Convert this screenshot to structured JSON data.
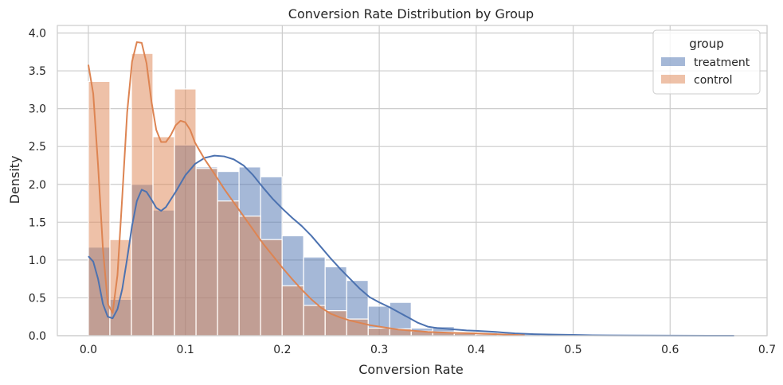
{
  "chart_data": {
    "type": "histogram",
    "title": "Conversion Rate Distribution by Group",
    "xlabel": "Conversion Rate",
    "ylabel": "Density",
    "xlim": [
      -0.032,
      0.7
    ],
    "ylim": [
      0,
      4.1
    ],
    "xticks": [
      {
        "value": 0.0,
        "label": "0.0"
      },
      {
        "value": 0.1,
        "label": "0.1"
      },
      {
        "value": 0.2,
        "label": "0.2"
      },
      {
        "value": 0.3,
        "label": "0.3"
      },
      {
        "value": 0.4,
        "label": "0.4"
      },
      {
        "value": 0.5,
        "label": "0.5"
      },
      {
        "value": 0.6,
        "label": "0.6"
      },
      {
        "value": 0.7,
        "label": "0.7"
      }
    ],
    "yticks": [
      {
        "value": 0.0,
        "label": "0.0"
      },
      {
        "value": 0.5,
        "label": "0.5"
      },
      {
        "value": 1.0,
        "label": "1.0"
      },
      {
        "value": 1.5,
        "label": "1.5"
      },
      {
        "value": 2.0,
        "label": "2.0"
      },
      {
        "value": 2.5,
        "label": "2.5"
      },
      {
        "value": 3.0,
        "label": "3.0"
      },
      {
        "value": 3.5,
        "label": "3.5"
      },
      {
        "value": 4.0,
        "label": "4.0"
      }
    ],
    "grid": true,
    "legend": {
      "title": "group",
      "placement": "top-right"
    },
    "bin_edges": [
      0.0,
      0.0222,
      0.0444,
      0.0666,
      0.0888,
      0.111,
      0.1332,
      0.1554,
      0.1776,
      0.1998,
      0.222,
      0.2442,
      0.2664,
      0.2886,
      0.3108,
      0.333,
      0.3552,
      0.3774,
      0.3996,
      0.4218,
      0.444,
      0.4662,
      0.4884,
      0.5106,
      0.5328,
      0.555,
      0.5772,
      0.5994,
      0.6216,
      0.6438,
      0.666
    ],
    "series": [
      {
        "name": "treatment",
        "color": "#4c72b0",
        "density": [
          1.17,
          0.48,
          2.0,
          1.66,
          2.52,
          2.23,
          2.17,
          2.23,
          2.1,
          1.32,
          1.04,
          0.91,
          0.73,
          0.39,
          0.44,
          0.1,
          0.12,
          0.05,
          0.04,
          0.03,
          0.02,
          0.01,
          0.01,
          0.01,
          0.005,
          0.005,
          0.005,
          0.005,
          0.005,
          0.005
        ],
        "kde": [
          [
            0.0,
            1.05
          ],
          [
            0.005,
            0.98
          ],
          [
            0.01,
            0.75
          ],
          [
            0.015,
            0.42
          ],
          [
            0.02,
            0.25
          ],
          [
            0.025,
            0.23
          ],
          [
            0.03,
            0.35
          ],
          [
            0.035,
            0.62
          ],
          [
            0.04,
            1.02
          ],
          [
            0.045,
            1.45
          ],
          [
            0.05,
            1.78
          ],
          [
            0.055,
            1.93
          ],
          [
            0.06,
            1.9
          ],
          [
            0.065,
            1.8
          ],
          [
            0.07,
            1.69
          ],
          [
            0.075,
            1.65
          ],
          [
            0.08,
            1.7
          ],
          [
            0.09,
            1.9
          ],
          [
            0.1,
            2.12
          ],
          [
            0.11,
            2.27
          ],
          [
            0.12,
            2.35
          ],
          [
            0.13,
            2.38
          ],
          [
            0.14,
            2.37
          ],
          [
            0.15,
            2.33
          ],
          [
            0.16,
            2.25
          ],
          [
            0.17,
            2.12
          ],
          [
            0.18,
            1.96
          ],
          [
            0.19,
            1.81
          ],
          [
            0.2,
            1.68
          ],
          [
            0.21,
            1.56
          ],
          [
            0.22,
            1.45
          ],
          [
            0.23,
            1.32
          ],
          [
            0.24,
            1.17
          ],
          [
            0.25,
            1.02
          ],
          [
            0.26,
            0.88
          ],
          [
            0.27,
            0.75
          ],
          [
            0.28,
            0.62
          ],
          [
            0.29,
            0.51
          ],
          [
            0.3,
            0.44
          ],
          [
            0.31,
            0.38
          ],
          [
            0.32,
            0.31
          ],
          [
            0.33,
            0.24
          ],
          [
            0.34,
            0.17
          ],
          [
            0.35,
            0.12
          ],
          [
            0.36,
            0.1
          ],
          [
            0.37,
            0.09
          ],
          [
            0.38,
            0.08
          ],
          [
            0.39,
            0.07
          ],
          [
            0.4,
            0.065
          ],
          [
            0.42,
            0.05
          ],
          [
            0.44,
            0.03
          ],
          [
            0.46,
            0.02
          ],
          [
            0.48,
            0.015
          ],
          [
            0.5,
            0.01
          ],
          [
            0.52,
            0.005
          ],
          [
            0.56,
            0.003
          ],
          [
            0.6,
            0.001
          ],
          [
            0.666,
            0.0
          ]
        ]
      },
      {
        "name": "control",
        "color": "#dd8452",
        "density": [
          3.36,
          1.27,
          3.73,
          2.63,
          3.26,
          2.21,
          1.78,
          1.58,
          1.27,
          0.66,
          0.4,
          0.33,
          0.22,
          0.1,
          0.09,
          0.06,
          0.05,
          0.03,
          0.02,
          0.01,
          0.0,
          0.0,
          0.0,
          0.0,
          0.0,
          0.0,
          0.0,
          0.0,
          0.0,
          0.0
        ],
        "kde": [
          [
            0.0,
            3.58
          ],
          [
            0.005,
            3.2
          ],
          [
            0.01,
            2.25
          ],
          [
            0.015,
            1.15
          ],
          [
            0.02,
            0.42
          ],
          [
            0.025,
            0.3
          ],
          [
            0.03,
            0.8
          ],
          [
            0.035,
            1.85
          ],
          [
            0.04,
            2.95
          ],
          [
            0.045,
            3.62
          ],
          [
            0.05,
            3.88
          ],
          [
            0.055,
            3.87
          ],
          [
            0.06,
            3.6
          ],
          [
            0.065,
            3.1
          ],
          [
            0.07,
            2.72
          ],
          [
            0.075,
            2.56
          ],
          [
            0.08,
            2.56
          ],
          [
            0.085,
            2.65
          ],
          [
            0.09,
            2.78
          ],
          [
            0.095,
            2.84
          ],
          [
            0.1,
            2.82
          ],
          [
            0.105,
            2.72
          ],
          [
            0.11,
            2.55
          ],
          [
            0.12,
            2.33
          ],
          [
            0.13,
            2.14
          ],
          [
            0.14,
            1.94
          ],
          [
            0.15,
            1.76
          ],
          [
            0.16,
            1.58
          ],
          [
            0.17,
            1.4
          ],
          [
            0.18,
            1.22
          ],
          [
            0.19,
            1.06
          ],
          [
            0.2,
            0.9
          ],
          [
            0.21,
            0.75
          ],
          [
            0.22,
            0.61
          ],
          [
            0.23,
            0.48
          ],
          [
            0.24,
            0.37
          ],
          [
            0.25,
            0.29
          ],
          [
            0.26,
            0.24
          ],
          [
            0.27,
            0.2
          ],
          [
            0.28,
            0.17
          ],
          [
            0.29,
            0.14
          ],
          [
            0.3,
            0.12
          ],
          [
            0.31,
            0.1
          ],
          [
            0.32,
            0.08
          ],
          [
            0.33,
            0.07
          ],
          [
            0.34,
            0.06
          ],
          [
            0.35,
            0.05
          ],
          [
            0.36,
            0.045
          ],
          [
            0.38,
            0.035
          ],
          [
            0.4,
            0.03
          ],
          [
            0.42,
            0.02
          ],
          [
            0.44,
            0.01
          ],
          [
            0.45,
            0.005
          ]
        ]
      }
    ]
  }
}
